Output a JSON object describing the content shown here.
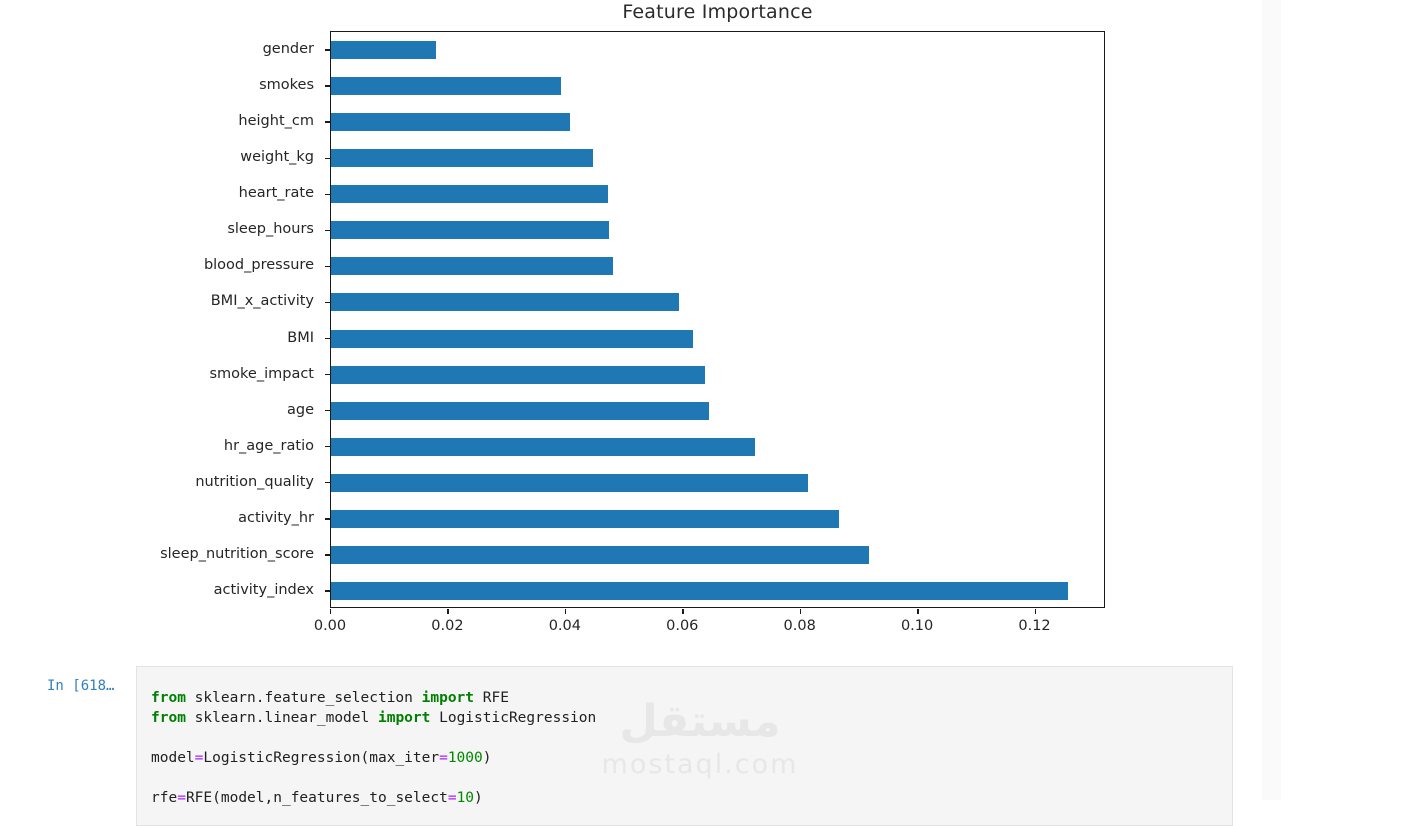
{
  "colors": {
    "bar": "#1f77b4",
    "prompt": "#307fc1",
    "keyword": "#008000",
    "operator": "#aa22ff",
    "number": "#008800"
  },
  "chart_data": {
    "type": "bar",
    "orientation": "horizontal",
    "title": "Feature Importance",
    "categories": [
      "gender",
      "smokes",
      "height_cm",
      "weight_kg",
      "heart_rate",
      "sleep_hours",
      "blood_pressure",
      "BMI_x_activity",
      "BMI",
      "smoke_impact",
      "age",
      "hr_age_ratio",
      "nutrition_quality",
      "activity_hr",
      "sleep_nutrition_score",
      "activity_index"
    ],
    "values": [
      0.0179,
      0.0391,
      0.0407,
      0.0446,
      0.0471,
      0.0473,
      0.048,
      0.0593,
      0.0616,
      0.0637,
      0.0643,
      0.0722,
      0.0813,
      0.0866,
      0.0916,
      0.1256
    ],
    "xlabel": "",
    "ylabel": "",
    "xtick_labels": [
      "0.00",
      "0.02",
      "0.04",
      "0.06",
      "0.08",
      "0.10",
      "0.12"
    ],
    "xticks": [
      0.0,
      0.02,
      0.04,
      0.06,
      0.08,
      0.1,
      0.12
    ],
    "xlim": [
      0,
      0.132
    ],
    "grid": false,
    "legend": false,
    "bar_color": "#1f77b4"
  },
  "notebook": {
    "cell_prompt": "In [618…",
    "code_lines": [
      [
        {
          "t": "from",
          "c": "kw"
        },
        {
          "t": " sklearn.feature_selection ",
          "c": "pl"
        },
        {
          "t": "import",
          "c": "kw"
        },
        {
          "t": " RFE",
          "c": "pl"
        }
      ],
      [
        {
          "t": "from",
          "c": "kw"
        },
        {
          "t": " sklearn.linear_model ",
          "c": "pl"
        },
        {
          "t": "import",
          "c": "kw"
        },
        {
          "t": " LogisticRegression",
          "c": "pl"
        }
      ],
      [],
      [
        {
          "t": "model",
          "c": "pl"
        },
        {
          "t": "=",
          "c": "op"
        },
        {
          "t": "LogisticRegression(max_iter",
          "c": "pl"
        },
        {
          "t": "=",
          "c": "op"
        },
        {
          "t": "1000",
          "c": "num"
        },
        {
          "t": ")",
          "c": "pl"
        }
      ],
      [],
      [
        {
          "t": "rfe",
          "c": "pl"
        },
        {
          "t": "=",
          "c": "op"
        },
        {
          "t": "RFE(model,n_features_to_select",
          "c": "pl"
        },
        {
          "t": "=",
          "c": "op"
        },
        {
          "t": "10",
          "c": "num"
        },
        {
          "t": ")",
          "c": "pl"
        }
      ]
    ]
  },
  "watermark": {
    "logo_text": "مستقل",
    "domain": "mostaql.com"
  }
}
